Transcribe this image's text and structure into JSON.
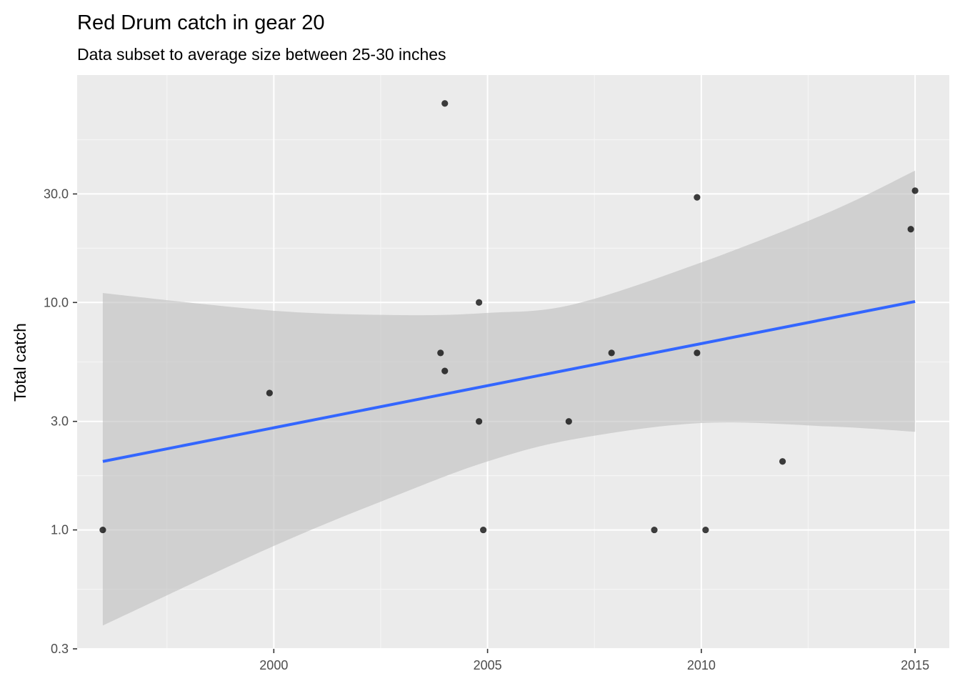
{
  "chart_data": {
    "type": "scatter",
    "title": "Red Drum catch in gear 20",
    "subtitle": "Data subset to average size between 25-30 inches",
    "xlabel": "",
    "ylabel": "Total catch",
    "x_scale": "linear",
    "y_scale": "log10",
    "xlim": [
      1995.4,
      2015.8
    ],
    "ylim": [
      0.3,
      100
    ],
    "x_ticks": [
      2000,
      2005,
      2010,
      2015
    ],
    "x_tick_labels": [
      "2000",
      "2005",
      "2010",
      "2015"
    ],
    "y_ticks": [
      0.3,
      1,
      3,
      10,
      30
    ],
    "y_tick_labels": [
      "0.3",
      "1.0",
      "3.0",
      "10.0",
      "30.0"
    ],
    "grid": true,
    "points": [
      {
        "x": 1996.0,
        "y": 1
      },
      {
        "x": 1999.9,
        "y": 4
      },
      {
        "x": 2003.9,
        "y": 6
      },
      {
        "x": 2004.0,
        "y": 5
      },
      {
        "x": 2004.0,
        "y": 75
      },
      {
        "x": 2004.8,
        "y": 10
      },
      {
        "x": 2004.8,
        "y": 3
      },
      {
        "x": 2004.9,
        "y": 1
      },
      {
        "x": 2006.9,
        "y": 3
      },
      {
        "x": 2007.9,
        "y": 6
      },
      {
        "x": 2008.9,
        "y": 1
      },
      {
        "x": 2009.9,
        "y": 29
      },
      {
        "x": 2009.9,
        "y": 6
      },
      {
        "x": 2010.1,
        "y": 1
      },
      {
        "x": 2011.9,
        "y": 2
      },
      {
        "x": 2014.9,
        "y": 21
      },
      {
        "x": 2015.0,
        "y": 31
      }
    ],
    "trend_line": {
      "x": [
        1996.0,
        2015.0
      ],
      "y": [
        2.0,
        10.1
      ]
    },
    "confidence_band": {
      "x": [
        1996.0,
        2000.0,
        2003.0,
        2005.0,
        2007.0,
        2010.0,
        2013.0,
        2015.0
      ],
      "lower": [
        0.38,
        0.85,
        1.45,
        2.0,
        2.5,
        2.95,
        2.85,
        2.7
      ],
      "upper": [
        11.0,
        9.2,
        8.8,
        9.0,
        9.8,
        15.0,
        25.0,
        38.0
      ]
    },
    "colors": {
      "panel_bg": "#ebebeb",
      "grid_major": "#ffffff",
      "grid_minor": "#f5f5f5",
      "point": "#000000",
      "line": "#3366ff",
      "band": "#bebebe"
    }
  }
}
